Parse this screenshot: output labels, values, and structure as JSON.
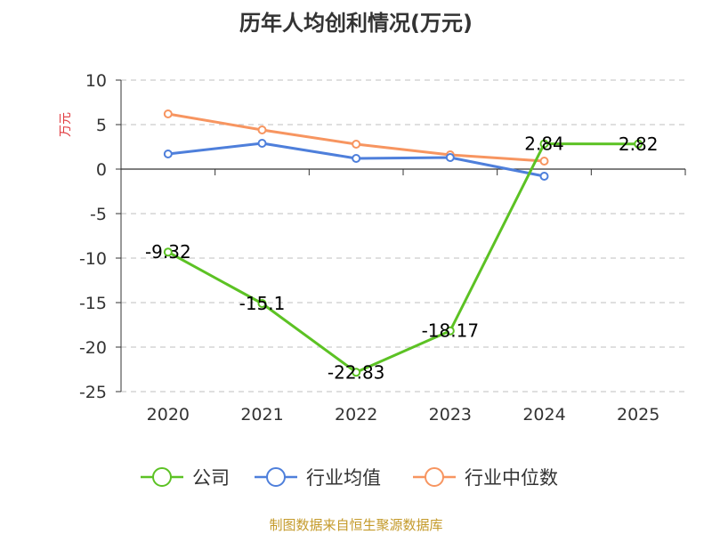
{
  "colors": {
    "company": "#5cc224",
    "industry_avg": "#4e7fdb",
    "industry_median": "#f79560",
    "unit": "#e0393e",
    "source": "#c49a2a",
    "grid": "#cccccc",
    "text": "#333333"
  },
  "source_text": "制图数据来自恒生聚源数据库",
  "chart_data": {
    "type": "line",
    "title": "历年人均创利情况(万元)",
    "ylabel": "万元",
    "xlabel": "",
    "categories": [
      "2020",
      "2021",
      "2022",
      "2023",
      "2024",
      "2025"
    ],
    "ylim": [
      -25,
      10
    ],
    "yticks": [
      10,
      5,
      0,
      -5,
      -10,
      -15,
      -20,
      -25
    ],
    "grid": "horizontal-dashed",
    "legend_position": "bottom",
    "series": [
      {
        "name": "公司",
        "color": "#5cc224",
        "values": [
          -9.32,
          -15.1,
          -22.83,
          -18.17,
          2.84,
          2.82
        ],
        "labels": [
          "-9.32",
          "-15.1",
          "-22.83",
          "-18.17",
          "2.84",
          "2.82"
        ]
      },
      {
        "name": "行业均值",
        "color": "#4e7fdb",
        "values": [
          1.7,
          2.9,
          1.2,
          1.3,
          -0.8,
          null
        ]
      },
      {
        "name": "行业中位数",
        "color": "#f79560",
        "values": [
          6.2,
          4.4,
          2.8,
          1.6,
          0.9,
          null
        ]
      }
    ]
  }
}
